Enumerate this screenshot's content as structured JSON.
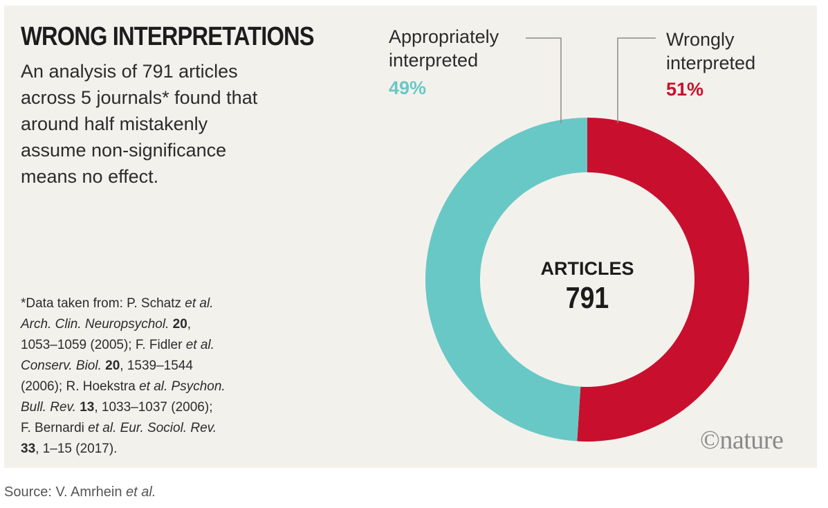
{
  "title": "WRONG INTERPRETATIONS",
  "subtitle_lines": [
    "An analysis of 791 articles",
    "across 5 journals* found that",
    "around half mistakenly",
    "assume non-significance",
    "means no effect."
  ],
  "footnote": {
    "line1_a": "*Data taken from: P. Schatz ",
    "line1_b": "et al.",
    "line2_a": "Arch. Clin. Neuropsychol.",
    "line2_b": "20",
    "line2_c": ",",
    "line3_a": "1053–1059 (2005); F. Fidler ",
    "line3_b": "et al.",
    "line4_a": "Conserv. Biol.",
    "line4_b": "20",
    "line4_c": ", 1539–1544",
    "line5_a": "(2006); R. Hoekstra ",
    "line5_b": "et al. Psychon.",
    "line6_a": "Bull. Rev.",
    "line6_b": "13",
    "line6_c": ", 1033–1037 (2006);",
    "line7_a": "F. Bernardi ",
    "line7_b": "et al. Eur. Sociol. Rev.",
    "line8_a": "33",
    "line8_b": ", 1–15 (2017)."
  },
  "source": {
    "prefix": "Source: V. Amrhein ",
    "suffix": "et al."
  },
  "logo": "©nature",
  "colors": {
    "appropriate": "#68c8c6",
    "wrong": "#c8102e"
  },
  "chart_data": {
    "type": "pie",
    "style": "donut",
    "title": "WRONG INTERPRETATIONS",
    "center_label": "ARTICLES",
    "center_value": "791",
    "slices": [
      {
        "label_line1": "Wrongly",
        "label_line2": "interpreted",
        "value": 51,
        "display": "51%"
      },
      {
        "label_line1": "Appropriately",
        "label_line2": "interpreted",
        "value": 49,
        "display": "49%"
      }
    ]
  }
}
